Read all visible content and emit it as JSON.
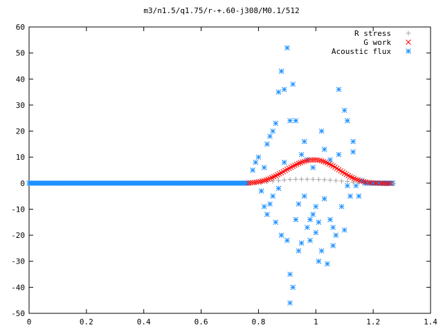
{
  "chart_data": {
    "type": "scatter",
    "title": "m3/n1.5/q1.75/r-+.60-j308/M0.1/512",
    "xlabel": "",
    "ylabel": "",
    "xlim": [
      0,
      1.4
    ],
    "ylim": [
      -50,
      60
    ],
    "x_ticks": [
      "0",
      "0.2",
      "0.4",
      "0.6",
      "0.8",
      "1",
      "1.2",
      "1.4"
    ],
    "y_ticks": [
      "-50",
      "-40",
      "-30",
      "-20",
      "-10",
      "0",
      "10",
      "20",
      "30",
      "40",
      "50",
      "60"
    ],
    "grid": false,
    "legend_position": "top-right",
    "series": [
      {
        "name": "R stress",
        "marker": "plus",
        "color": "#a0a0a0",
        "x": [
          0.77,
          0.79,
          0.81,
          0.83,
          0.85,
          0.87,
          0.89,
          0.91,
          0.93,
          0.95,
          0.97,
          0.99,
          1.01,
          1.03,
          1.05,
          1.07,
          1.09,
          1.11,
          1.13,
          1.15,
          1.17,
          1.19,
          1.21,
          1.23,
          1.25,
          1.27
        ],
        "y": [
          0,
          0.2,
          0.4,
          0.6,
          0.8,
          1.0,
          1.2,
          1.4,
          1.5,
          1.5,
          1.5,
          1.5,
          1.4,
          1.3,
          1.2,
          1.0,
          0.8,
          0.6,
          0.4,
          0.2,
          0.1,
          0,
          -0.1,
          -0.2,
          -0.2,
          -0.2
        ]
      },
      {
        "name": "G work",
        "marker": "cross",
        "color": "#ff0000",
        "x": [
          0.76,
          0.78,
          0.8,
          0.82,
          0.84,
          0.86,
          0.88,
          0.9,
          0.92,
          0.94,
          0.96,
          0.98,
          1.0,
          1.02,
          1.04,
          1.06,
          1.08,
          1.1,
          1.12,
          1.14,
          1.16,
          1.18,
          1.2,
          1.22,
          1.24,
          1.26
        ],
        "y": [
          0,
          0.2,
          0.5,
          1.0,
          1.8,
          2.8,
          4.0,
          5.3,
          6.5,
          7.6,
          8.4,
          8.9,
          9.0,
          8.6,
          7.8,
          6.6,
          5.2,
          3.8,
          2.5,
          1.5,
          0.8,
          0.3,
          0.1,
          0,
          -0.1,
          -0.1
        ]
      },
      {
        "name": "Acoustic flux",
        "marker": "star",
        "color": "#1e90ff",
        "x": [
          0.76,
          0.78,
          0.79,
          0.8,
          0.81,
          0.82,
          0.82,
          0.83,
          0.83,
          0.84,
          0.84,
          0.85,
          0.85,
          0.86,
          0.86,
          0.87,
          0.87,
          0.88,
          0.88,
          0.89,
          0.89,
          0.9,
          0.9,
          0.91,
          0.91,
          0.91,
          0.92,
          0.92,
          0.93,
          0.93,
          0.94,
          0.94,
          0.95,
          0.95,
          0.96,
          0.96,
          0.97,
          0.97,
          0.98,
          0.98,
          0.99,
          0.99,
          1.0,
          1.0,
          1.01,
          1.01,
          1.02,
          1.02,
          1.03,
          1.03,
          1.04,
          1.05,
          1.05,
          1.06,
          1.06,
          1.07,
          1.08,
          1.08,
          1.09,
          1.1,
          1.1,
          1.11,
          1.11,
          1.12,
          1.13,
          1.13,
          1.14,
          1.15,
          1.16,
          1.17,
          1.18,
          1.19,
          1.2,
          1.22,
          1.25
        ],
        "y": [
          0,
          5,
          8,
          10,
          -3,
          -9,
          6,
          15,
          -12,
          18,
          -8,
          20,
          -5,
          23,
          -15,
          35,
          -2,
          43,
          -20,
          36,
          8,
          -22,
          52,
          24,
          -35,
          -46,
          38,
          -40,
          24,
          -14,
          -8,
          -26,
          11,
          -23,
          -5,
          16,
          -17,
          9,
          -22,
          -14,
          -12,
          6,
          -19,
          -9,
          -30,
          -15,
          20,
          -26,
          13,
          -6,
          -31,
          -14,
          9,
          -17,
          -24,
          -20,
          11,
          36,
          -9,
          28,
          -18,
          -1,
          24,
          -5,
          12,
          16,
          -1,
          -5,
          1,
          0,
          0,
          0,
          0,
          0,
          0
        ]
      }
    ]
  }
}
